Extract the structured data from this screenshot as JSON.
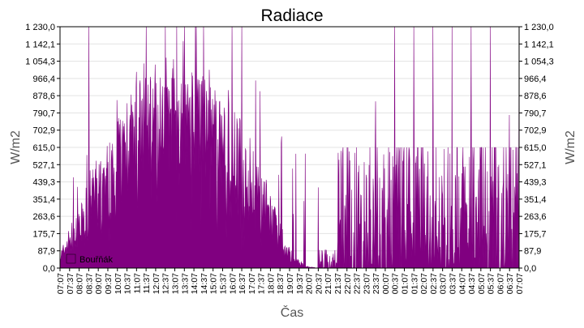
{
  "chart_data": {
    "type": "area",
    "title": "Radiace",
    "xlabel": "Čas",
    "ylabel_left": "W/m2",
    "ylabel_right": "W/m2",
    "ylim": [
      0,
      1230
    ],
    "y_ticks": [
      "0,0",
      "87,9",
      "175,7",
      "263,6",
      "351,4",
      "439,3",
      "527,1",
      "615,0",
      "702,9",
      "790,7",
      "878,6",
      "966,4",
      "1 054,3",
      "1 142,1",
      "1 230,0"
    ],
    "x_ticks": [
      "07:07",
      "07:37",
      "08:07",
      "08:37",
      "09:07",
      "09:37",
      "10:07",
      "10:37",
      "11:07",
      "11:37",
      "12:07",
      "12:37",
      "13:07",
      "13:37",
      "14:07",
      "14:37",
      "15:07",
      "15:37",
      "16:07",
      "16:37",
      "17:07",
      "17:37",
      "18:07",
      "18:37",
      "19:07",
      "19:37",
      "20:07",
      "20:37",
      "21:07",
      "21:37",
      "22:07",
      "22:37",
      "23:07",
      "23:37",
      "00:07",
      "00:37",
      "01:07",
      "01:37",
      "02:07",
      "02:37",
      "03:07",
      "03:37",
      "04:07",
      "04:37",
      "05:07",
      "05:37",
      "06:07",
      "06:37",
      "07:07"
    ],
    "grid": true,
    "legend_position": "bottom-left",
    "series": [
      {
        "name": "Bouřňák",
        "color": "#800080",
        "baseline": [
          {
            "t": "07:07",
            "v": 50
          },
          {
            "t": "07:37",
            "v": 140
          },
          {
            "t": "08:07",
            "v": 180
          },
          {
            "t": "08:37",
            "v": 320
          },
          {
            "t": "09:07",
            "v": 370
          },
          {
            "t": "09:37",
            "v": 430
          },
          {
            "t": "10:07",
            "v": 560
          },
          {
            "t": "10:37",
            "v": 610
          },
          {
            "t": "11:07",
            "v": 680
          },
          {
            "t": "11:37",
            "v": 750
          },
          {
            "t": "12:07",
            "v": 800
          },
          {
            "t": "12:37",
            "v": 830
          },
          {
            "t": "13:07",
            "v": 800
          },
          {
            "t": "13:37",
            "v": 760
          },
          {
            "t": "14:07",
            "v": 740
          },
          {
            "t": "14:37",
            "v": 720
          },
          {
            "t": "15:07",
            "v": 660
          },
          {
            "t": "15:37",
            "v": 620
          },
          {
            "t": "16:07",
            "v": 560
          },
          {
            "t": "16:37",
            "v": 500
          },
          {
            "t": "17:07",
            "v": 430
          },
          {
            "t": "17:37",
            "v": 350
          },
          {
            "t": "18:07",
            "v": 250
          },
          {
            "t": "18:37",
            "v": 150
          },
          {
            "t": "19:07",
            "v": 70
          },
          {
            "t": "19:37",
            "v": 25
          },
          {
            "t": "20:07",
            "v": 5
          },
          {
            "t": "20:37",
            "v": 0
          },
          {
            "t": "07:07",
            "v": 30
          }
        ],
        "notable_peaks": [
          {
            "t": "08:37",
            "v": 1230
          },
          {
            "t": "09:07",
            "v": 380
          },
          {
            "t": "10:37",
            "v": 840
          },
          {
            "t": "11:07",
            "v": 1000
          },
          {
            "t": "11:37",
            "v": 1230
          },
          {
            "t": "12:37",
            "v": 1230
          },
          {
            "t": "13:37",
            "v": 1230
          },
          {
            "t": "14:37",
            "v": 1230
          },
          {
            "t": "16:07",
            "v": 1230
          },
          {
            "t": "16:37",
            "v": 1230
          },
          {
            "t": "22:37",
            "v": 615
          },
          {
            "t": "23:37",
            "v": 850
          },
          {
            "t": "00:37",
            "v": 1230
          },
          {
            "t": "01:37",
            "v": 1230
          },
          {
            "t": "02:37",
            "v": 1230
          },
          {
            "t": "03:37",
            "v": 1230
          },
          {
            "t": "04:37",
            "v": 1230
          },
          {
            "t": "05:37",
            "v": 1230
          },
          {
            "t": "06:37",
            "v": 780
          },
          {
            "t": "07:07",
            "v": 1230
          }
        ]
      }
    ]
  }
}
